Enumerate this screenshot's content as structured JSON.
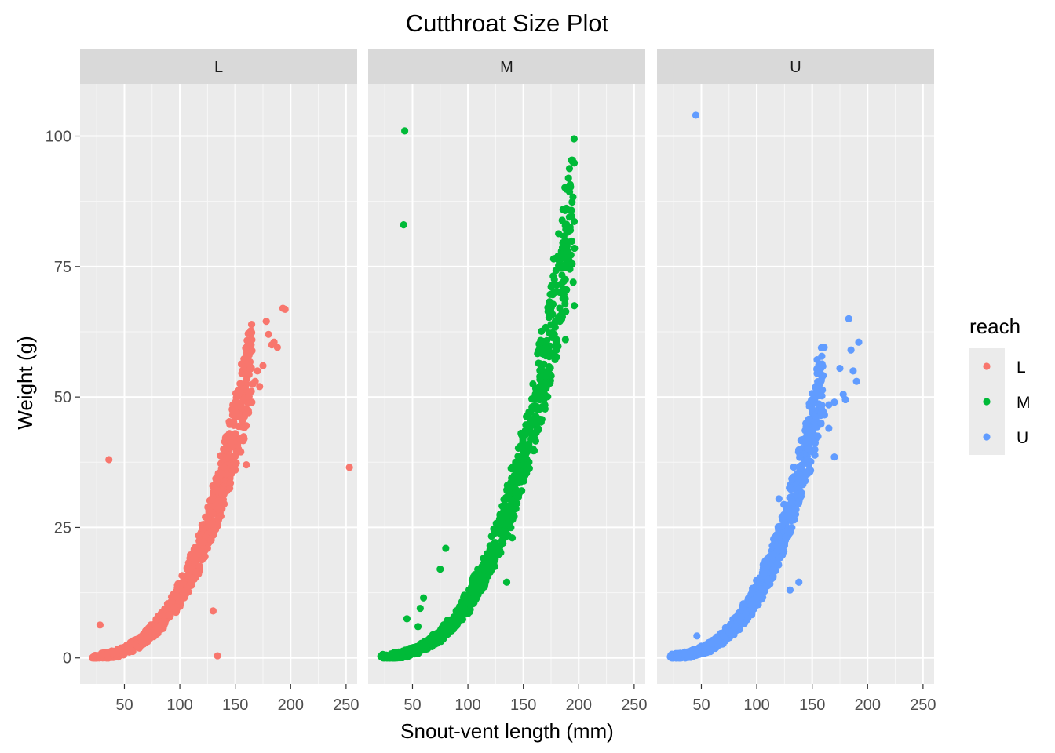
{
  "chart_data": {
    "type": "scatter",
    "title": "Cutthroat Size Plot",
    "xlabel": "Snout-vent length (mm)",
    "ylabel": "Weight (g)",
    "xlim": [
      10,
      260
    ],
    "ylim": [
      -5,
      110
    ],
    "x_ticks": [
      50,
      100,
      150,
      200,
      250
    ],
    "y_ticks": [
      0,
      25,
      50,
      75,
      100
    ],
    "grid": true,
    "facet_by": "reach",
    "facets": [
      "L",
      "M",
      "U"
    ],
    "legend": {
      "title": "reach",
      "position": "right",
      "entries": [
        {
          "label": "L",
          "color": "#F8766D"
        },
        {
          "label": "M",
          "color": "#00BA38"
        },
        {
          "label": "U",
          "color": "#619CFF"
        }
      ]
    },
    "series": [
      {
        "name": "L",
        "color": "#F8766D",
        "trend": {
          "min": 22,
          "max": 165,
          "coef": 7.8e-06,
          "exp": 3.1
        },
        "points": [
          [
            22,
            0.2
          ],
          [
            25,
            0.3
          ],
          [
            30,
            0.5
          ],
          [
            35,
            0.8
          ],
          [
            40,
            1.0
          ],
          [
            45,
            1.4
          ],
          [
            50,
            1.6
          ],
          [
            55,
            2.0
          ],
          [
            60,
            2.6
          ],
          [
            65,
            3.2
          ],
          [
            70,
            4.0
          ],
          [
            75,
            4.8
          ],
          [
            80,
            5.8
          ],
          [
            85,
            7.0
          ],
          [
            90,
            8.2
          ],
          [
            95,
            9.5
          ],
          [
            100,
            11.0
          ],
          [
            105,
            12.8
          ],
          [
            110,
            14.5
          ],
          [
            115,
            16.5
          ],
          [
            120,
            18.8
          ],
          [
            125,
            21.0
          ],
          [
            130,
            23.5
          ],
          [
            135,
            26.5
          ],
          [
            140,
            29.5
          ],
          [
            145,
            32.5
          ],
          [
            150,
            36.0
          ],
          [
            155,
            39.5
          ],
          [
            158,
            42.0
          ],
          [
            160,
            44.5
          ],
          [
            162,
            47.0
          ],
          [
            165,
            49.0
          ],
          [
            168,
            53.0
          ],
          [
            170,
            55.0
          ],
          [
            172,
            52.0
          ],
          [
            175,
            56.0
          ],
          [
            178,
            64.5
          ],
          [
            180,
            62.0
          ],
          [
            183,
            60.0
          ],
          [
            185,
            60.5
          ],
          [
            188,
            59.5
          ],
          [
            193,
            67.0
          ],
          [
            195,
            66.8
          ],
          [
            36,
            38.0
          ],
          [
            28,
            6.3
          ],
          [
            130,
            9.0
          ],
          [
            134,
            0.4
          ],
          [
            253,
            36.5
          ],
          [
            160,
            37.0
          ],
          [
            150,
            43.0
          ]
        ]
      },
      {
        "name": "M",
        "color": "#00BA38",
        "trend": {
          "min": 22,
          "max": 195,
          "coef": 5.4e-06,
          "exp": 3.15
        },
        "points": [
          [
            22,
            0.2
          ],
          [
            25,
            0.3
          ],
          [
            30,
            0.5
          ],
          [
            35,
            0.7
          ],
          [
            40,
            1.0
          ],
          [
            45,
            1.3
          ],
          [
            50,
            1.7
          ],
          [
            55,
            2.2
          ],
          [
            60,
            2.8
          ],
          [
            65,
            3.4
          ],
          [
            70,
            4.2
          ],
          [
            75,
            5.0
          ],
          [
            80,
            6.0
          ],
          [
            85,
            7.2
          ],
          [
            90,
            8.5
          ],
          [
            95,
            10.0
          ],
          [
            100,
            11.5
          ],
          [
            105,
            13.2
          ],
          [
            110,
            15.0
          ],
          [
            115,
            17.0
          ],
          [
            120,
            19.2
          ],
          [
            125,
            21.5
          ],
          [
            130,
            24.0
          ],
          [
            135,
            27.0
          ],
          [
            140,
            30.0
          ],
          [
            145,
            33.5
          ],
          [
            150,
            37.0
          ],
          [
            155,
            41.0
          ],
          [
            160,
            45.0
          ],
          [
            165,
            49.5
          ],
          [
            168,
            52.0
          ],
          [
            170,
            54.0
          ],
          [
            175,
            58.5
          ],
          [
            178,
            62.0
          ],
          [
            180,
            61.0
          ],
          [
            183,
            64.5
          ],
          [
            185,
            66.0
          ],
          [
            188,
            61.0
          ],
          [
            190,
            78.0
          ],
          [
            192,
            74.5
          ],
          [
            195,
            72.0
          ],
          [
            196,
            67.5
          ],
          [
            43,
            101.0
          ],
          [
            42,
            83.0
          ],
          [
            80,
            21.0
          ],
          [
            60,
            11.5
          ],
          [
            57,
            9.5
          ],
          [
            45,
            7.5
          ],
          [
            55,
            6.0
          ],
          [
            75,
            17.0
          ],
          [
            135,
            14.5
          ],
          [
            140,
            23.0
          ],
          [
            180,
            59.0
          ]
        ]
      },
      {
        "name": "U",
        "color": "#619CFF",
        "trend": {
          "min": 22,
          "max": 160,
          "coef": 6.2e-06,
          "exp": 3.15
        },
        "points": [
          [
            22,
            0.2
          ],
          [
            25,
            0.3
          ],
          [
            30,
            0.5
          ],
          [
            35,
            0.7
          ],
          [
            40,
            1.0
          ],
          [
            45,
            1.3
          ],
          [
            50,
            1.7
          ],
          [
            55,
            2.2
          ],
          [
            60,
            2.8
          ],
          [
            65,
            3.4
          ],
          [
            70,
            4.2
          ],
          [
            75,
            5.0
          ],
          [
            80,
            6.0
          ],
          [
            85,
            7.2
          ],
          [
            90,
            8.5
          ],
          [
            95,
            10.0
          ],
          [
            100,
            11.5
          ],
          [
            105,
            13.2
          ],
          [
            110,
            15.0
          ],
          [
            115,
            17.0
          ],
          [
            120,
            19.2
          ],
          [
            125,
            21.5
          ],
          [
            130,
            24.0
          ],
          [
            135,
            27.5
          ],
          [
            140,
            31.0
          ],
          [
            145,
            35.5
          ],
          [
            150,
            39.5
          ],
          [
            155,
            42.5
          ],
          [
            158,
            45.0
          ],
          [
            160,
            47.0
          ],
          [
            165,
            48.5
          ],
          [
            170,
            49.0
          ],
          [
            175,
            55.5
          ],
          [
            178,
            50.5
          ],
          [
            180,
            49.5
          ],
          [
            183,
            65.0
          ],
          [
            185,
            59.0
          ],
          [
            187,
            55.0
          ],
          [
            190,
            53.0
          ],
          [
            192,
            60.5
          ],
          [
            45,
            104.0
          ],
          [
            46,
            4.2
          ],
          [
            120,
            30.5
          ],
          [
            138,
            14.5
          ],
          [
            130,
            13.0
          ],
          [
            165,
            44.0
          ],
          [
            170,
            38.5
          ]
        ]
      }
    ]
  }
}
